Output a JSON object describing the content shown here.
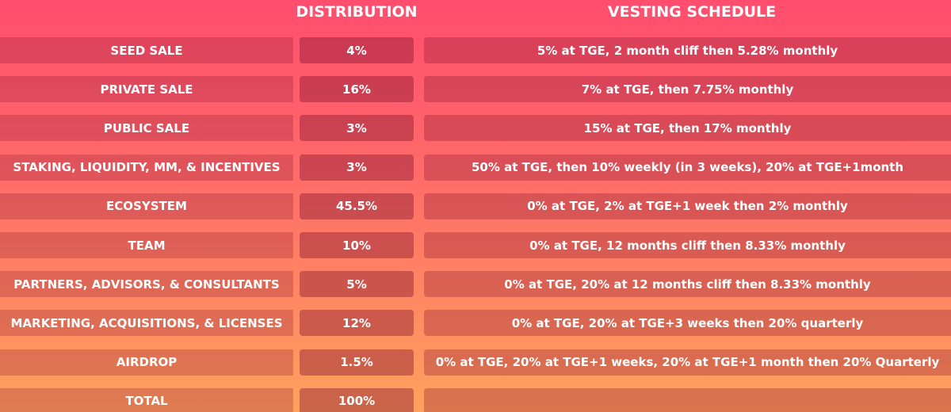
{
  "header": {
    "columns": [
      "DISTRIBUTION",
      "VESTING SCHEDULE"
    ]
  },
  "table": {
    "rows": [
      [
        "SEED SALE",
        "4%",
        "5% at TGE, 2 month cliff then 5.28% monthly"
      ],
      [
        "PRIVATE SALE",
        "16%",
        "7% at TGE, then 7.75% monthly"
      ],
      [
        "PUBLIC SALE",
        "3%",
        "15% at TGE, then 17% monthly"
      ],
      [
        "STAKING, LIQUIDITY, MM, & INCENTIVES",
        "3%",
        "50% at TGE, then 10% weekly (in 3 weeks), 20% at TGE+1month"
      ],
      [
        "ECOSYSTEM",
        "45.5%",
        "0% at TGE, 2% at TGE+1 week then 2% monthly"
      ],
      [
        "TEAM",
        "10%",
        "0% at TGE, 12 months cliff then 8.33% monthly"
      ],
      [
        "PARTNERS, ADVISORS, & CONSULTANTS",
        "5%",
        "0% at TGE, 20% at 12 months cliff then 8.33% monthly"
      ],
      [
        "MARKETING, ACQUISITIONS, & LICENSES",
        "12%",
        "0% at TGE, 20% at TGE+3 weeks then 20% quarterly"
      ],
      [
        "AIRDROP",
        "1.5%",
        "0% at TGE, 20% at TGE+1 weeks, 20% at TGE+1 month then 20% Quarterly"
      ]
    ],
    "total": [
      "TOTAL",
      "100%"
    ]
  }
}
